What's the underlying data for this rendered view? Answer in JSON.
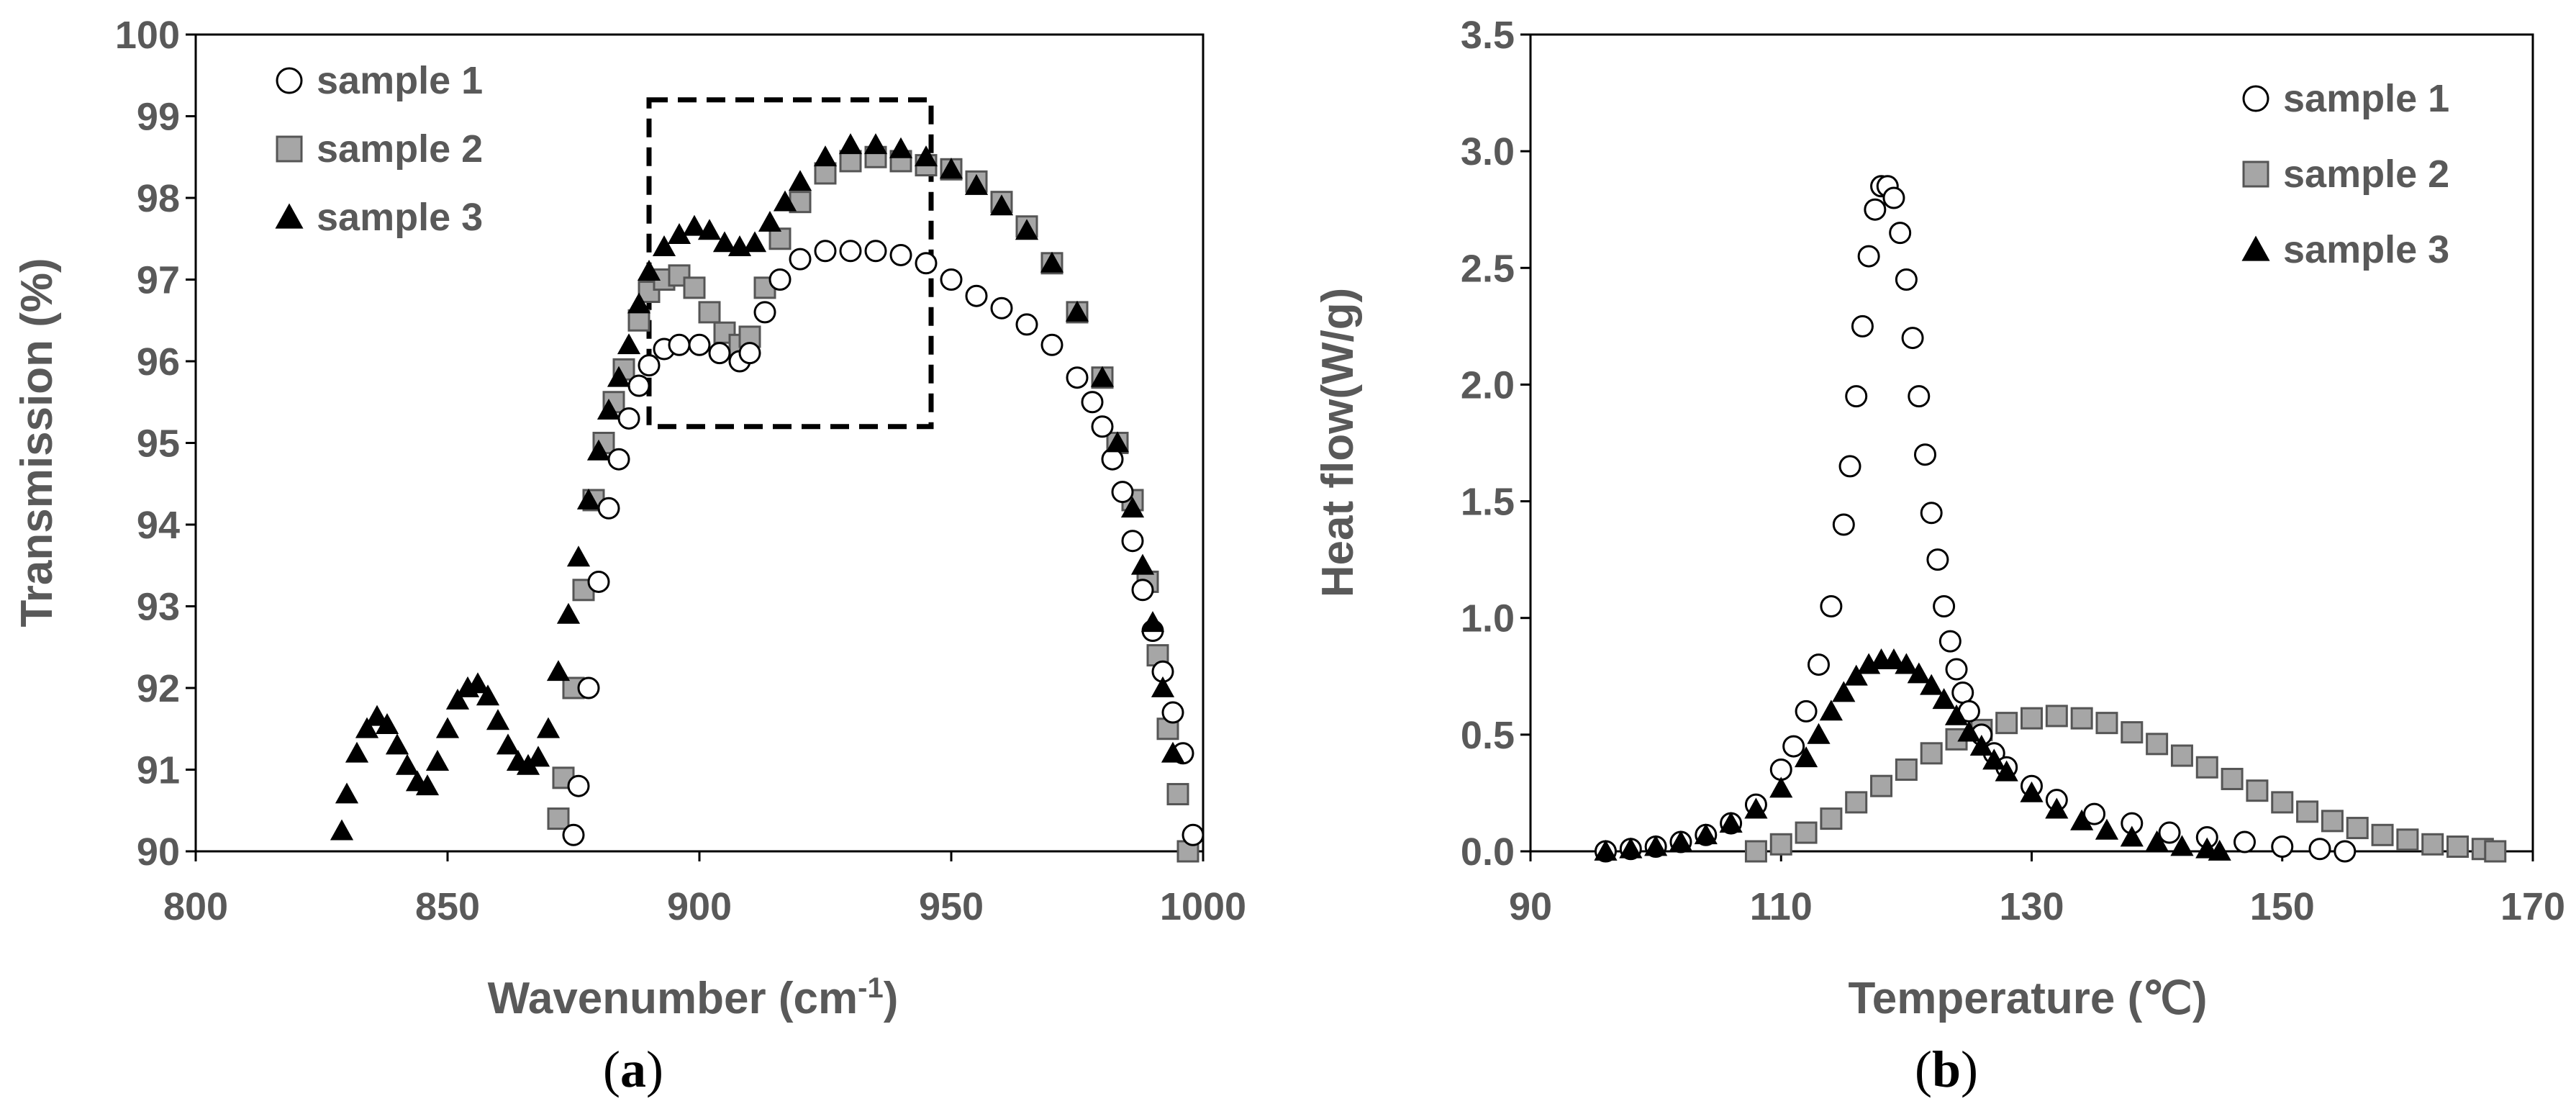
{
  "chart_data": [
    {
      "panel": "a",
      "panel_label": "a",
      "type": "scatter",
      "xlabel": "Wavenumber (cm",
      "xlabel_sup": "-1",
      "xlabel_end": ")",
      "ylabel": "Transmission (%)",
      "xlim": [
        800,
        1000
      ],
      "ylim": [
        90,
        100
      ],
      "xticks": [
        "800",
        "850",
        "900",
        "950",
        "1000"
      ],
      "yticks": [
        "90",
        "91",
        "92",
        "93",
        "94",
        "95",
        "96",
        "97",
        "98",
        "99",
        "100"
      ],
      "legend_position": "top-left",
      "annotation": "dashed rectangle highlighting region 890-946 cm-1, 95.2-99.2 %",
      "highlight_box": {
        "x": [
          890,
          946
        ],
        "y": [
          95.2,
          99.2
        ]
      },
      "series": [
        {
          "name": "sample 1",
          "marker": "circle",
          "x": [
            875,
            876,
            878,
            880,
            882,
            884,
            886,
            888,
            890,
            893,
            896,
            900,
            904,
            908,
            910,
            913,
            916,
            920,
            925,
            930,
            935,
            940,
            945,
            950,
            955,
            960,
            965,
            970,
            975,
            978,
            980,
            982,
            984,
            986,
            988,
            990,
            992,
            994,
            996,
            998
          ],
          "y": [
            90.2,
            90.8,
            92.0,
            93.3,
            94.2,
            94.8,
            95.3,
            95.7,
            95.95,
            96.15,
            96.2,
            96.2,
            96.1,
            96.0,
            96.1,
            96.6,
            97.0,
            97.25,
            97.35,
            97.35,
            97.35,
            97.3,
            97.2,
            97.0,
            96.8,
            96.65,
            96.45,
            96.2,
            95.8,
            95.5,
            95.2,
            94.8,
            94.4,
            93.8,
            93.2,
            92.7,
            92.2,
            91.7,
            91.2,
            90.2
          ]
        },
        {
          "name": "sample 2",
          "marker": "square",
          "x": [
            872,
            873,
            875,
            877,
            879,
            881,
            883,
            885,
            888,
            890,
            893,
            896,
            899,
            902,
            905,
            908,
            910,
            913,
            916,
            920,
            925,
            930,
            935,
            940,
            945,
            950,
            955,
            960,
            965,
            970,
            975,
            980,
            983,
            986,
            989,
            991,
            993,
            995,
            997
          ],
          "y": [
            90.4,
            90.9,
            92.0,
            93.2,
            94.3,
            95.0,
            95.5,
            95.9,
            96.5,
            96.85,
            97.0,
            97.05,
            96.9,
            96.6,
            96.35,
            96.2,
            96.3,
            96.9,
            97.5,
            97.95,
            98.3,
            98.45,
            98.5,
            98.45,
            98.4,
            98.35,
            98.2,
            97.95,
            97.65,
            97.2,
            96.6,
            95.8,
            95.0,
            94.3,
            93.3,
            92.4,
            91.5,
            90.7,
            90.0
          ]
        },
        {
          "name": "sample 3",
          "marker": "triangle",
          "x": [
            829,
            830,
            832,
            834,
            836,
            838,
            840,
            842,
            844,
            846,
            848,
            850,
            852,
            854,
            856,
            858,
            860,
            862,
            864,
            866,
            868,
            870,
            872,
            874,
            876,
            878,
            880,
            882,
            884,
            886,
            888,
            890,
            893,
            896,
            899,
            902,
            905,
            908,
            911,
            914,
            917,
            920,
            925,
            930,
            935,
            940,
            945,
            950,
            955,
            960,
            965,
            970,
            975,
            980,
            983,
            986,
            988,
            990,
            992,
            994
          ],
          "y": [
            90.25,
            90.7,
            91.2,
            91.5,
            91.65,
            91.55,
            91.3,
            91.05,
            90.85,
            90.8,
            91.1,
            91.5,
            91.85,
            92.0,
            92.05,
            91.9,
            91.6,
            91.3,
            91.1,
            91.05,
            91.15,
            91.5,
            92.2,
            92.9,
            93.6,
            94.3,
            94.9,
            95.4,
            95.8,
            96.2,
            96.7,
            97.1,
            97.4,
            97.55,
            97.65,
            97.6,
            97.45,
            97.4,
            97.45,
            97.7,
            97.95,
            98.2,
            98.5,
            98.65,
            98.65,
            98.6,
            98.5,
            98.35,
            98.15,
            97.9,
            97.6,
            97.2,
            96.6,
            95.8,
            95.0,
            94.2,
            93.5,
            92.8,
            92.0,
            91.2
          ]
        }
      ]
    },
    {
      "panel": "b",
      "panel_label": "b",
      "type": "scatter",
      "xlabel": "Temperature (℃)",
      "ylabel": "Heat flow(W/g)",
      "xlim": [
        90,
        170
      ],
      "ylim": [
        0,
        3.5
      ],
      "xticks": [
        "90",
        "110",
        "130",
        "150",
        "170"
      ],
      "yticks": [
        "0.0",
        "0.5",
        "1.0",
        "1.5",
        "2.0",
        "2.5",
        "3.0",
        "3.5"
      ],
      "legend_position": "top-right",
      "series": [
        {
          "name": "sample 1",
          "marker": "circle",
          "x": [
            96,
            98,
            100,
            102,
            104,
            106,
            108,
            110,
            111,
            112,
            113,
            114,
            115,
            115.5,
            116,
            116.5,
            117,
            117.5,
            118,
            118.5,
            119,
            119.5,
            120,
            120.5,
            121,
            121.5,
            122,
            122.5,
            123,
            123.5,
            124,
            124.5,
            125,
            126,
            127,
            128,
            130,
            132,
            135,
            138,
            141,
            144,
            147,
            150,
            153,
            155
          ],
          "y": [
            0.0,
            0.01,
            0.02,
            0.04,
            0.07,
            0.12,
            0.2,
            0.35,
            0.45,
            0.6,
            0.8,
            1.05,
            1.4,
            1.65,
            1.95,
            2.25,
            2.55,
            2.75,
            2.85,
            2.85,
            2.8,
            2.65,
            2.45,
            2.2,
            1.95,
            1.7,
            1.45,
            1.25,
            1.05,
            0.9,
            0.78,
            0.68,
            0.6,
            0.5,
            0.42,
            0.36,
            0.28,
            0.22,
            0.16,
            0.12,
            0.08,
            0.06,
            0.04,
            0.02,
            0.01,
            0.0
          ]
        },
        {
          "name": "sample 2",
          "marker": "square",
          "x": [
            108,
            110,
            112,
            114,
            116,
            118,
            120,
            122,
            124,
            126,
            128,
            130,
            132,
            134,
            136,
            138,
            140,
            142,
            144,
            146,
            148,
            150,
            152,
            154,
            156,
            158,
            160,
            162,
            164,
            166,
            167
          ],
          "y": [
            0.0,
            0.03,
            0.08,
            0.14,
            0.21,
            0.28,
            0.35,
            0.42,
            0.48,
            0.52,
            0.55,
            0.57,
            0.58,
            0.57,
            0.55,
            0.51,
            0.46,
            0.41,
            0.36,
            0.31,
            0.26,
            0.21,
            0.17,
            0.13,
            0.1,
            0.07,
            0.05,
            0.03,
            0.02,
            0.01,
            0.0
          ]
        },
        {
          "name": "sample 3",
          "marker": "triangle",
          "x": [
            96,
            98,
            100,
            102,
            104,
            106,
            108,
            110,
            112,
            113,
            114,
            115,
            116,
            117,
            118,
            119,
            120,
            121,
            122,
            123,
            124,
            125,
            126,
            127,
            128,
            130,
            132,
            134,
            136,
            138,
            140,
            142,
            144,
            145
          ],
          "y": [
            0.0,
            0.01,
            0.02,
            0.04,
            0.07,
            0.12,
            0.18,
            0.27,
            0.4,
            0.5,
            0.6,
            0.68,
            0.75,
            0.8,
            0.82,
            0.82,
            0.8,
            0.76,
            0.71,
            0.65,
            0.58,
            0.51,
            0.45,
            0.39,
            0.34,
            0.25,
            0.18,
            0.13,
            0.09,
            0.06,
            0.04,
            0.02,
            0.01,
            0.0
          ]
        }
      ]
    }
  ]
}
